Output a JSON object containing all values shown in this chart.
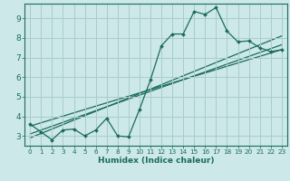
{
  "xlabel": "Humidex (Indice chaleur)",
  "bg_color": "#cce8e8",
  "grid_color": "#aacccc",
  "line_color": "#1a6b5a",
  "xlim": [
    -0.5,
    23.5
  ],
  "ylim": [
    2.5,
    9.75
  ],
  "xticks": [
    0,
    1,
    2,
    3,
    4,
    5,
    6,
    7,
    8,
    9,
    10,
    11,
    12,
    13,
    14,
    15,
    16,
    17,
    18,
    19,
    20,
    21,
    22,
    23
  ],
  "yticks": [
    3,
    4,
    5,
    6,
    7,
    8,
    9
  ],
  "curve_x": [
    0,
    1,
    2,
    3,
    4,
    5,
    6,
    7,
    8,
    9,
    10,
    11,
    12,
    13,
    14,
    15,
    16,
    17,
    18,
    19,
    20,
    21,
    22,
    23
  ],
  "curve_y": [
    3.6,
    3.2,
    2.8,
    3.3,
    3.35,
    3.0,
    3.3,
    3.9,
    3.0,
    2.95,
    4.35,
    5.85,
    7.6,
    8.2,
    8.2,
    9.35,
    9.2,
    9.55,
    8.35,
    7.8,
    7.85,
    7.5,
    7.3,
    7.4
  ],
  "trend1_x": [
    0,
    23
  ],
  "trend1_y": [
    3.5,
    7.4
  ],
  "trend2_x": [
    0,
    23
  ],
  "trend2_y": [
    3.1,
    7.65
  ],
  "trend3_x": [
    0,
    23
  ],
  "trend3_y": [
    2.9,
    8.1
  ]
}
